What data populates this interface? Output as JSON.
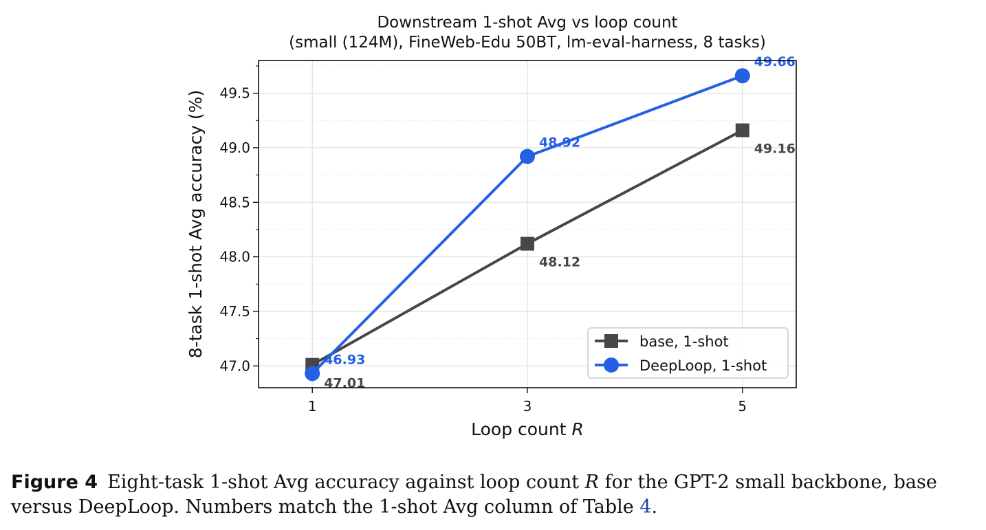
{
  "chart_data": {
    "type": "line",
    "title": "Downstream 1-shot Avg vs loop count",
    "subtitle": "(small (124M), FineWeb-Edu 50BT, lm-eval-harness, 8 tasks)",
    "xlabel": "Loop count",
    "xlabel_var": "R",
    "ylabel": "8-task 1-shot Avg accuracy (%)",
    "x": [
      1,
      3,
      5
    ],
    "xticks": [
      1,
      3,
      5
    ],
    "xtick_labels": [
      "1",
      "3",
      "5"
    ],
    "xlim": [
      0.5,
      5.5
    ],
    "ylim": [
      46.8,
      49.8
    ],
    "yticks": [
      47.0,
      47.5,
      48.0,
      48.5,
      49.0,
      49.5
    ],
    "ytick_labels": [
      "47.0",
      "47.5",
      "48.0",
      "48.5",
      "49.0",
      "49.5"
    ],
    "grid": true,
    "legend_position": "lower-right",
    "series": [
      {
        "name": "base, 1-shot",
        "values": [
          47.01,
          48.12,
          49.16
        ],
        "labels": [
          "47.01",
          "48.12",
          "49.16"
        ],
        "color": "#474747",
        "marker": "square",
        "label_placement": "below-right"
      },
      {
        "name": "DeepLoop, 1-shot",
        "values": [
          46.93,
          48.92,
          49.66
        ],
        "labels": [
          "46.93",
          "48.92",
          "49.66"
        ],
        "color": "#2460e3",
        "marker": "circle",
        "label_placement": "above-right"
      }
    ]
  },
  "caption": {
    "label": "Figure 4",
    "text_1": "Eight-task 1-shot Avg accuracy against loop count",
    "var": "R",
    "text_2": "for the GPT-2 small backbone, base versus DeepLoop. Numbers match the 1-shot Avg column of Table",
    "ref": "4",
    "end": "."
  }
}
